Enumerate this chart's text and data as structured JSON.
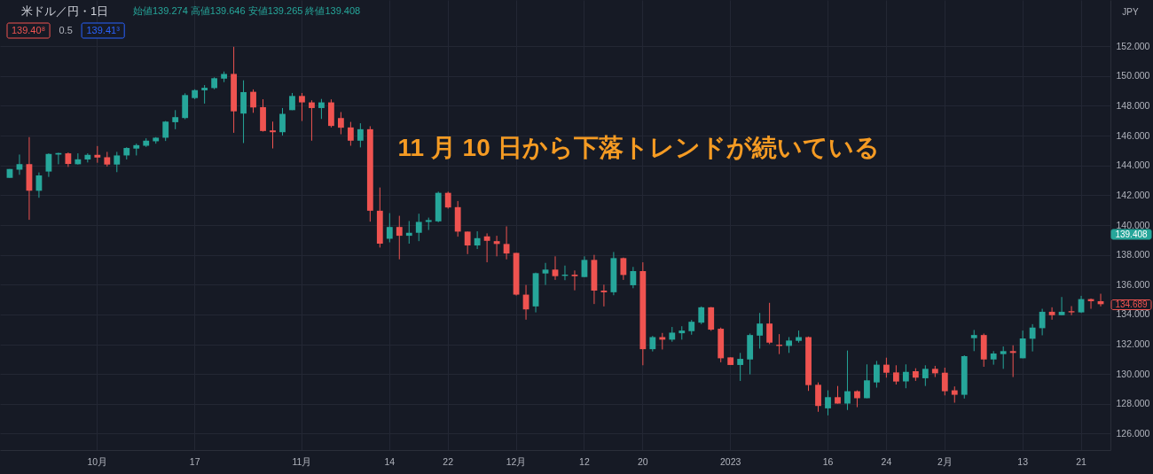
{
  "chart_data": {
    "type": "candlestick",
    "title": "米ドル／円・1日",
    "subtitle": "始値139.274 高値139.646 安値139.265 終値139.408",
    "ylabel": "JPY",
    "annotations": [
      "11 月 10 日から下落トレンドが続いている",
      "139.40⁸",
      "0.5",
      "139.41³",
      "139.408",
      "134.689"
    ],
    "categories": [
      null,
      null,
      null,
      null,
      null,
      null,
      null,
      null,
      null,
      "10月",
      null,
      null,
      null,
      null,
      null,
      null,
      null,
      null,
      null,
      "17",
      null,
      null,
      null,
      null,
      null,
      null,
      null,
      null,
      null,
      null,
      "11月",
      null,
      null,
      null,
      null,
      null,
      null,
      null,
      null,
      "14",
      null,
      null,
      null,
      null,
      null,
      "22",
      null,
      null,
      null,
      null,
      null,
      null,
      "12月",
      null,
      null,
      null,
      null,
      null,
      null,
      "12",
      null,
      null,
      null,
      null,
      null,
      "20",
      null,
      null,
      null,
      null,
      null,
      null,
      null,
      null,
      "2023",
      null,
      null,
      null,
      null,
      null,
      null,
      null,
      null,
      null,
      "16",
      null,
      null,
      null,
      null,
      null,
      "24",
      null,
      null,
      null,
      null,
      null,
      "2月",
      null,
      null,
      null,
      null,
      null,
      null,
      null,
      "13",
      null,
      null,
      null,
      null,
      null,
      "21",
      null,
      null
    ],
    "ohlc": [
      [
        143.17,
        143.76,
        143.17,
        143.76
      ],
      [
        143.72,
        144.73,
        143.37,
        144.08
      ],
      [
        144.08,
        145.9,
        140.35,
        142.3
      ],
      [
        142.3,
        143.53,
        141.83,
        143.33
      ],
      [
        143.59,
        144.81,
        143.23,
        144.77
      ],
      [
        144.73,
        144.85,
        144.08,
        144.83
      ],
      [
        144.81,
        144.87,
        143.9,
        144.1
      ],
      [
        144.08,
        144.81,
        144.06,
        144.41
      ],
      [
        144.4,
        144.81,
        144.2,
        144.71
      ],
      [
        144.71,
        145.3,
        144.18,
        144.53
      ],
      [
        144.55,
        144.91,
        143.92,
        144.06
      ],
      [
        144.06,
        144.91,
        143.55,
        144.67
      ],
      [
        144.67,
        145.22,
        144.4,
        145.17
      ],
      [
        145.13,
        145.46,
        144.67,
        145.36
      ],
      [
        145.32,
        145.82,
        145.24,
        145.66
      ],
      [
        145.62,
        145.9,
        145.46,
        145.86
      ],
      [
        145.86,
        146.98,
        145.64,
        146.94
      ],
      [
        146.9,
        147.71,
        146.43,
        147.24
      ],
      [
        147.18,
        148.84,
        147.1,
        148.72
      ],
      [
        148.52,
        149.11,
        148.44,
        149.05
      ],
      [
        149.04,
        149.39,
        148.15,
        149.21
      ],
      [
        149.19,
        149.91,
        149.11,
        149.85
      ],
      [
        149.83,
        150.3,
        149.59,
        150.14
      ],
      [
        150.14,
        151.96,
        146.19,
        147.63
      ],
      [
        147.48,
        149.71,
        145.5,
        148.92
      ],
      [
        148.94,
        149.1,
        147.53,
        147.89
      ],
      [
        147.91,
        148.44,
        146.27,
        146.31
      ],
      [
        146.35,
        146.94,
        145.14,
        146.23
      ],
      [
        146.23,
        147.85,
        146.01,
        147.46
      ],
      [
        147.71,
        148.86,
        147.71,
        148.66
      ],
      [
        148.66,
        148.86,
        146.98,
        148.23
      ],
      [
        148.23,
        148.37,
        145.66,
        147.85
      ],
      [
        147.85,
        148.46,
        147.12,
        148.23
      ],
      [
        148.23,
        148.43,
        146.55,
        146.65
      ],
      [
        147.18,
        147.58,
        146.09,
        146.53
      ],
      [
        146.55,
        146.92,
        145.32,
        145.66
      ],
      [
        145.66,
        146.83,
        145.21,
        146.43
      ],
      [
        146.43,
        146.63,
        140.23,
        140.96
      ],
      [
        140.96,
        142.52,
        138.49,
        138.75
      ],
      [
        139.08,
        140.8,
        138.84,
        139.87
      ],
      [
        139.87,
        140.62,
        137.7,
        139.28
      ],
      [
        139.28,
        140.27,
        138.75,
        139.48
      ],
      [
        139.48,
        140.76,
        138.92,
        140.21
      ],
      [
        140.21,
        140.5,
        139.67,
        140.33
      ],
      [
        140.25,
        142.24,
        140.19,
        142.16
      ],
      [
        142.16,
        142.24,
        141.1,
        141.18
      ],
      [
        141.2,
        141.61,
        139.22,
        139.56
      ],
      [
        139.56,
        139.56,
        138.05,
        138.63
      ],
      [
        138.63,
        139.58,
        138.39,
        139.12
      ],
      [
        139.24,
        139.44,
        137.5,
        138.94
      ],
      [
        138.92,
        139.28,
        137.9,
        138.73
      ],
      [
        138.73,
        139.91,
        137.7,
        138.09
      ],
      [
        138.13,
        138.13,
        135.27,
        135.33
      ],
      [
        135.33,
        135.98,
        133.65,
        134.34
      ],
      [
        134.54,
        136.81,
        134.14,
        136.77
      ],
      [
        136.75,
        137.46,
        135.98,
        137.01
      ],
      [
        137.01,
        137.9,
        136.32,
        136.57
      ],
      [
        136.59,
        137.28,
        136.3,
        136.67
      ],
      [
        136.67,
        136.95,
        135.62,
        136.57
      ],
      [
        136.51,
        137.9,
        136.51,
        137.66
      ],
      [
        137.66,
        138.0,
        134.7,
        135.6
      ],
      [
        135.6,
        136.0,
        134.54,
        135.49
      ],
      [
        135.49,
        138.19,
        135.29,
        137.78
      ],
      [
        137.78,
        137.82,
        136.32,
        136.65
      ],
      [
        135.96,
        137.19,
        135.76,
        136.91
      ],
      [
        136.91,
        137.5,
        130.59,
        131.67
      ],
      [
        131.67,
        132.56,
        131.52,
        132.48
      ],
      [
        132.48,
        132.76,
        131.65,
        132.31
      ],
      [
        132.31,
        133.16,
        132.17,
        132.78
      ],
      [
        132.74,
        133.21,
        132.31,
        132.92
      ],
      [
        132.88,
        133.63,
        132.64,
        133.51
      ],
      [
        133.45,
        134.54,
        133.35,
        134.48
      ],
      [
        134.48,
        134.5,
        132.9,
        132.98
      ],
      [
        133.04,
        133.12,
        130.79,
        131.06
      ],
      [
        131.12,
        131.12,
        130.61,
        130.61
      ],
      [
        130.61,
        131.42,
        129.54,
        131.02
      ],
      [
        130.98,
        132.72,
        129.98,
        132.62
      ],
      [
        132.58,
        134.1,
        131.71,
        133.39
      ],
      [
        133.39,
        134.78,
        132.01,
        132.11
      ],
      [
        131.97,
        132.68,
        131.34,
        131.89
      ],
      [
        131.89,
        132.48,
        131.42,
        132.25
      ],
      [
        132.23,
        132.92,
        132.11,
        132.48
      ],
      [
        132.48,
        132.52,
        128.87,
        129.26
      ],
      [
        129.28,
        129.44,
        127.47,
        127.86
      ],
      [
        127.7,
        128.91,
        127.23,
        128.45
      ],
      [
        128.45,
        129.2,
        128.02,
        128.02
      ],
      [
        128.02,
        131.58,
        127.59,
        128.85
      ],
      [
        128.85,
        128.91,
        127.78,
        128.38
      ],
      [
        128.38,
        130.65,
        128.38,
        129.58
      ],
      [
        129.44,
        130.88,
        129.09,
        130.63
      ],
      [
        130.63,
        131.1,
        129.76,
        130.09
      ],
      [
        130.11,
        130.59,
        129.3,
        129.5
      ],
      [
        129.5,
        130.65,
        129.05,
        130.15
      ],
      [
        130.19,
        130.39,
        129.54,
        129.76
      ],
      [
        129.72,
        130.59,
        129.2,
        130.35
      ],
      [
        130.35,
        130.55,
        129.8,
        130.05
      ],
      [
        130.09,
        130.43,
        128.57,
        128.85
      ],
      [
        128.91,
        129.17,
        128.08,
        128.61
      ],
      [
        128.61,
        131.26,
        128.36,
        131.2
      ],
      [
        132.41,
        132.96,
        131.54,
        132.62
      ],
      [
        132.62,
        132.72,
        130.49,
        130.98
      ],
      [
        130.98,
        131.54,
        130.63,
        131.38
      ],
      [
        131.34,
        131.85,
        130.35,
        131.54
      ],
      [
        131.54,
        131.93,
        129.8,
        131.42
      ],
      [
        131.06,
        132.92,
        131.06,
        132.39
      ],
      [
        132.37,
        133.35,
        131.52,
        133.12
      ],
      [
        133.08,
        134.38,
        132.6,
        134.18
      ],
      [
        134.18,
        134.48,
        133.65,
        133.95
      ],
      [
        133.95,
        135.17,
        133.95,
        134.18
      ],
      [
        134.22,
        134.56,
        133.95,
        134.14
      ],
      [
        134.14,
        135.25,
        134.1,
        135.03
      ],
      [
        135.03,
        135.07,
        134.38,
        134.89
      ],
      [
        134.89,
        135.39,
        134.54,
        134.689
      ]
    ],
    "colors": [
      "#26a69a",
      "#26a69a",
      "#ef5350",
      "#26a69a",
      "#26a69a",
      "#26a69a",
      "#ef5350",
      "#26a69a",
      "#26a69a",
      "#ef5350",
      "#ef5350",
      "#26a69a",
      "#26a69a",
      "#26a69a",
      "#26a69a",
      "#26a69a",
      "#26a69a",
      "#26a69a",
      "#26a69a",
      "#26a69a",
      "#26a69a",
      "#26a69a",
      "#26a69a",
      "#ef5350",
      "#26a69a",
      "#ef5350",
      "#ef5350",
      "#ef5350",
      "#26a69a",
      "#26a69a",
      "#ef5350",
      "#ef5350",
      "#26a69a",
      "#ef5350",
      "#ef5350",
      "#ef5350",
      "#26a69a",
      "#ef5350",
      "#ef5350",
      "#26a69a",
      "#ef5350",
      "#26a69a",
      "#26a69a",
      "#26a69a",
      "#26a69a",
      "#ef5350",
      "#ef5350",
      "#ef5350",
      "#26a69a",
      "#ef5350",
      "#ef5350",
      "#ef5350",
      "#ef5350",
      "#ef5350",
      "#26a69a",
      "#26a69a",
      "#ef5350",
      "#26a69a",
      "#ef5350",
      "#26a69a",
      "#ef5350",
      "#ef5350",
      "#26a69a",
      "#ef5350",
      "#26a69a",
      "#ef5350",
      "#26a69a",
      "#ef5350",
      "#26a69a",
      "#26a69a",
      "#26a69a",
      "#26a69a",
      "#ef5350",
      "#ef5350",
      "#ef5350",
      "#26a69a",
      "#26a69a",
      "#26a69a",
      "#ef5350",
      "#ef5350",
      "#26a69a",
      "#26a69a",
      "#ef5350",
      "#ef5350",
      "#26a69a",
      "#ef5350",
      "#26a69a",
      "#ef5350",
      "#26a69a",
      "#26a69a",
      "#ef5350",
      "#ef5350",
      "#26a69a",
      "#ef5350",
      "#26a69a",
      "#ef5350",
      "#ef5350",
      "#ef5350",
      "#26a69a",
      "#26a69a",
      "#ef5350",
      "#26a69a",
      "#26a69a",
      "#ef5350",
      "#26a69a",
      "#26a69a",
      "#26a69a",
      "#ef5350",
      "#26a69a",
      "#ef5350",
      "#26a69a",
      "#ef5350",
      "#ef5350"
    ],
    "ylim": [
      124.9,
      155.1
    ],
    "yticks": [
      {
        "value": 126,
        "label": "126.000"
      },
      {
        "value": 128,
        "label": "128.000"
      },
      {
        "value": 130,
        "label": "130.000"
      },
      {
        "value": 132,
        "label": "132.000"
      },
      {
        "value": 134,
        "label": "134.000"
      },
      {
        "value": 136,
        "label": "136.000"
      },
      {
        "value": 138,
        "label": "138.000"
      },
      {
        "value": 140,
        "label": "140.000"
      },
      {
        "value": 142,
        "label": "142.000"
      },
      {
        "value": 144,
        "label": "144.000"
      },
      {
        "value": 146,
        "label": "146.000"
      },
      {
        "value": 148,
        "label": "148.000"
      },
      {
        "value": 150,
        "label": "150.000"
      },
      {
        "value": 152,
        "label": "152.000"
      }
    ],
    "grid": true
  }
}
